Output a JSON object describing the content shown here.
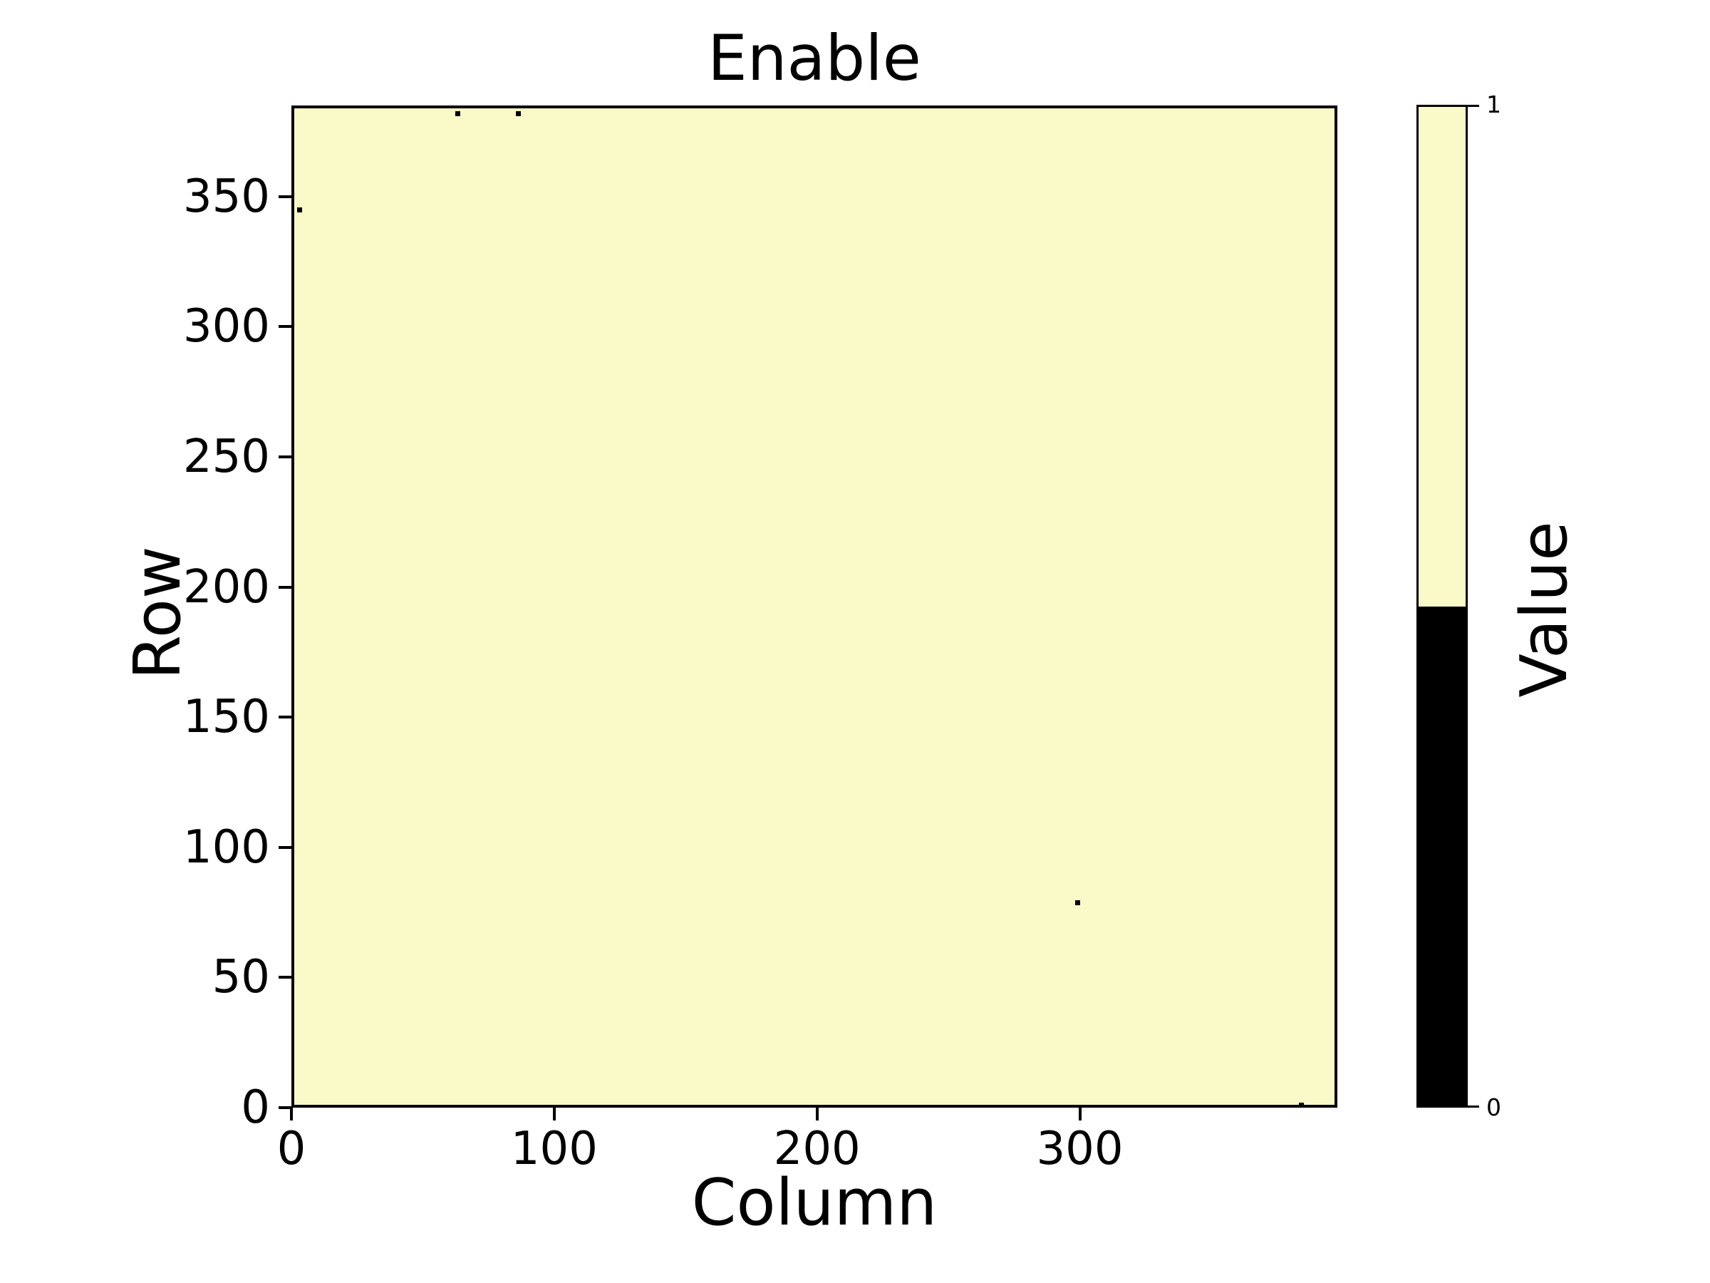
{
  "figure": {
    "background": "#ffffff",
    "text_color": "#000000"
  },
  "chart_data": {
    "type": "heatmap",
    "title": "Enable",
    "xlabel": "Column",
    "ylabel": "Row",
    "xlim": [
      0,
      398
    ],
    "ylim": [
      0,
      385
    ],
    "x_ticks": [
      0,
      100,
      200,
      300
    ],
    "y_ticks": [
      0,
      50,
      100,
      150,
      200,
      250,
      300,
      350
    ],
    "grid": false,
    "legend": "none",
    "value_colors": {
      "1": "#fafac8",
      "0": "#000000"
    },
    "default_value": 1,
    "zero_cells": [
      {
        "row": 383,
        "col": 62
      },
      {
        "row": 383,
        "col": 85
      },
      {
        "row": 346,
        "col": 2
      },
      {
        "row": 80,
        "col": 298
      },
      {
        "row": 0,
        "col": 383
      }
    ],
    "colorbar": {
      "label": "Value",
      "ticks": [
        {
          "value": 1,
          "label": "1"
        },
        {
          "value": 0,
          "label": "0"
        }
      ],
      "segments": [
        {
          "from": 0.5,
          "to": 1.0,
          "color": "#fafac8"
        },
        {
          "from": 0.0,
          "to": 0.5,
          "color": "#000000"
        }
      ]
    }
  }
}
